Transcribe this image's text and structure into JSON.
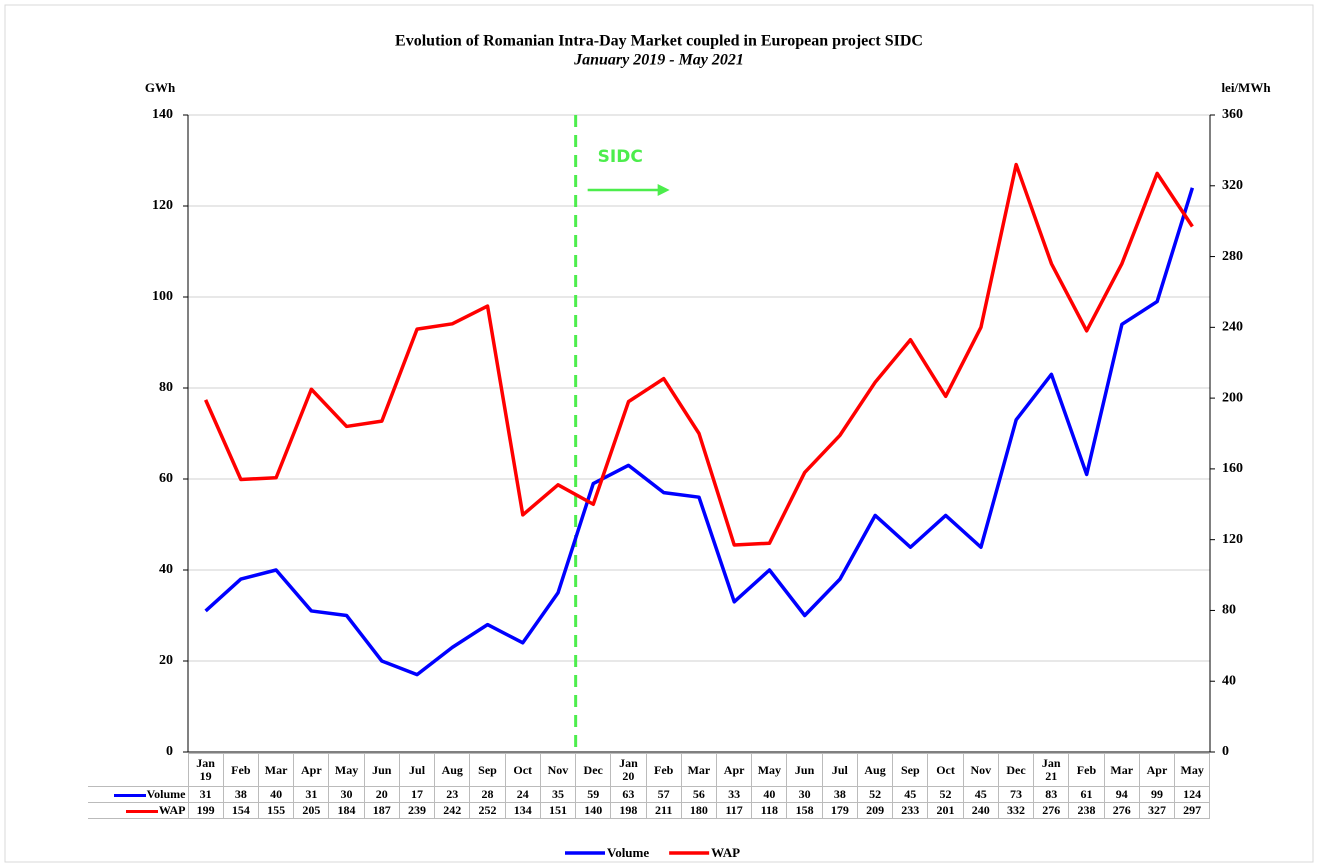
{
  "chart_data": {
    "type": "line",
    "title": "Evolution of Romanian Intra-Day Market coupled in European project SIDC",
    "subtitle": "January 2019 - May 2021",
    "y_label": "GWh",
    "y2_label": "lei/MWh",
    "annotation": {
      "text": "SIDC",
      "color": "#4ced4c"
    },
    "categories": [
      "Jan 19",
      "Feb",
      "Mar",
      "Apr",
      "May",
      "Jun",
      "Jul",
      "Aug",
      "Sep",
      "Oct",
      "Nov",
      "Dec",
      "Jan 20",
      "Feb",
      "Mar",
      "Apr",
      "May",
      "Jun",
      "Jul",
      "Aug",
      "Sep",
      "Oct",
      "Nov",
      "Dec",
      "Jan 21",
      "Feb",
      "Mar",
      "Apr",
      "May"
    ],
    "series": [
      {
        "name": "Volume",
        "color": "#0000ff",
        "axis": "y",
        "values": [
          31,
          38,
          40,
          31,
          30,
          20,
          17,
          23,
          28,
          24,
          35,
          59,
          63,
          57,
          56,
          33,
          40,
          30,
          38,
          52,
          45,
          52,
          45,
          73,
          83,
          61,
          94,
          99,
          124
        ]
      },
      {
        "name": "WAP",
        "color": "#ff0000",
        "axis": "y2",
        "values": [
          199,
          154,
          155,
          205,
          184,
          187,
          239,
          242,
          252,
          134,
          151,
          140,
          198,
          211,
          180,
          117,
          118,
          158,
          179,
          209,
          233,
          201,
          240,
          332,
          276,
          238,
          276,
          327,
          297
        ]
      }
    ],
    "ylim": [
      0,
      140
    ],
    "yticks": [
      0,
      20,
      40,
      60,
      80,
      100,
      120,
      140
    ],
    "y2lim": [
      0,
      360
    ],
    "y2ticks": [
      0,
      40,
      80,
      120,
      160,
      200,
      240,
      280,
      320,
      360
    ],
    "grid": true,
    "legend": "bottom"
  }
}
